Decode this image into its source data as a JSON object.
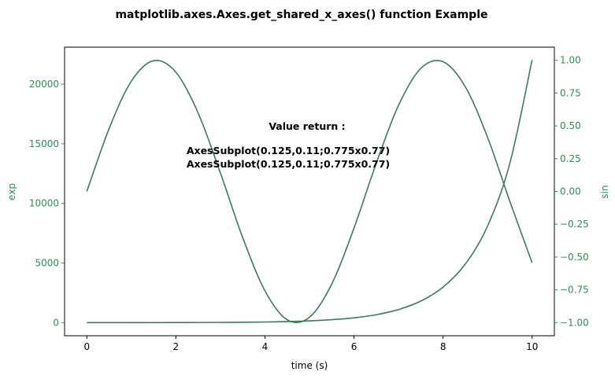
{
  "chart_data": {
    "type": "line",
    "title": "matplotlib.axes.Axes.get_shared_x_axes() function Example",
    "xlabel": "time (s)",
    "ylabel_left": "exp",
    "ylabel_right": "sin",
    "xlim": [
      -0.5,
      10.5
    ],
    "ylim_left": [
      -1100,
      23100
    ],
    "ylim_right": [
      -1.1,
      1.1
    ],
    "x_ticks": [
      0,
      2,
      4,
      6,
      8,
      10
    ],
    "x_tick_labels": [
      "0",
      "2",
      "4",
      "6",
      "8",
      "10"
    ],
    "y_left_ticks": [
      0,
      5000,
      10000,
      15000,
      20000
    ],
    "y_left_tick_labels": [
      "0",
      "5000",
      "10000",
      "15000",
      "20000"
    ],
    "y_right_ticks": [
      -1.0,
      -0.75,
      -0.5,
      -0.25,
      0.0,
      0.25,
      0.5,
      0.75,
      1.0
    ],
    "y_right_tick_labels": [
      "−1.00",
      "−0.75",
      "−0.50",
      "−0.25",
      "0.00",
      "0.25",
      "0.50",
      "0.75",
      "1.00"
    ],
    "series": [
      {
        "axis": "left",
        "color": "#3d7a5c",
        "x": [
          0,
          0.5,
          1,
          1.5,
          2,
          2.5,
          3,
          3.5,
          4,
          4.5,
          5,
          5.5,
          6,
          6.5,
          7,
          7.5,
          8,
          8.5,
          9,
          9.5,
          10
        ],
        "values": [
          1,
          1.65,
          2.72,
          4.48,
          7.39,
          12.18,
          20.09,
          33.12,
          54.6,
          90.02,
          148.41,
          244.69,
          403.43,
          665.14,
          1096.63,
          1808.04,
          2980.96,
          4914.77,
          8103.08,
          13359.73,
          22026.47
        ]
      },
      {
        "axis": "right",
        "color": "#3d7a5c",
        "x": [
          0,
          0.5,
          1,
          1.5,
          2,
          2.5,
          3,
          3.5,
          4,
          4.5,
          5,
          5.5,
          6,
          6.5,
          7,
          7.5,
          8,
          8.5,
          9,
          9.5,
          10
        ],
        "values": [
          0,
          0.479,
          0.841,
          0.997,
          0.909,
          0.598,
          0.141,
          -0.351,
          -0.757,
          -0.978,
          -0.959,
          -0.706,
          -0.279,
          0.215,
          0.657,
          0.938,
          0.989,
          0.798,
          0.412,
          -0.075,
          -0.544
        ]
      }
    ],
    "annotation_lines": [
      "Value return :",
      "",
      "AxesSubplot(0.125,0.11;0.775x0.77)",
      "AxesSubplot(0.125,0.11;0.775x0.77)"
    ]
  }
}
